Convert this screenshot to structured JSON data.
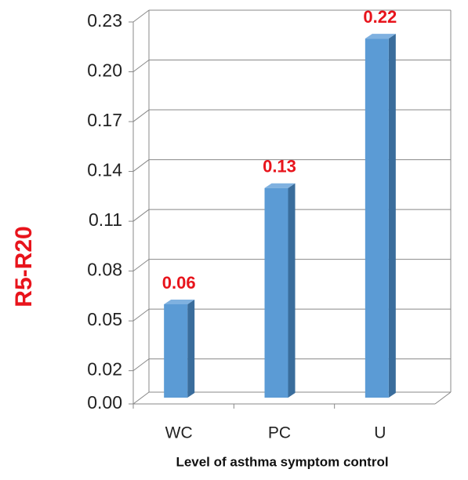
{
  "chart_data": {
    "type": "bar3d",
    "categories": [
      "WC",
      "PC",
      "U"
    ],
    "values": [
      0.06,
      0.13,
      0.22
    ],
    "color": "#5b9bd5",
    "value_label_color": "#e8141c",
    "y_label": "R5-R20",
    "x_label": "Level of asthma symptom control",
    "ylim": [
      0,
      0.23
    ],
    "yticks": [
      {
        "value": 0,
        "label": "0.00"
      },
      0.02,
      0.05,
      0.08,
      0.11,
      0.14,
      0.17,
      {
        "value": 0.2,
        "label": "0.20"
      },
      0.23
    ],
    "grid": true
  }
}
